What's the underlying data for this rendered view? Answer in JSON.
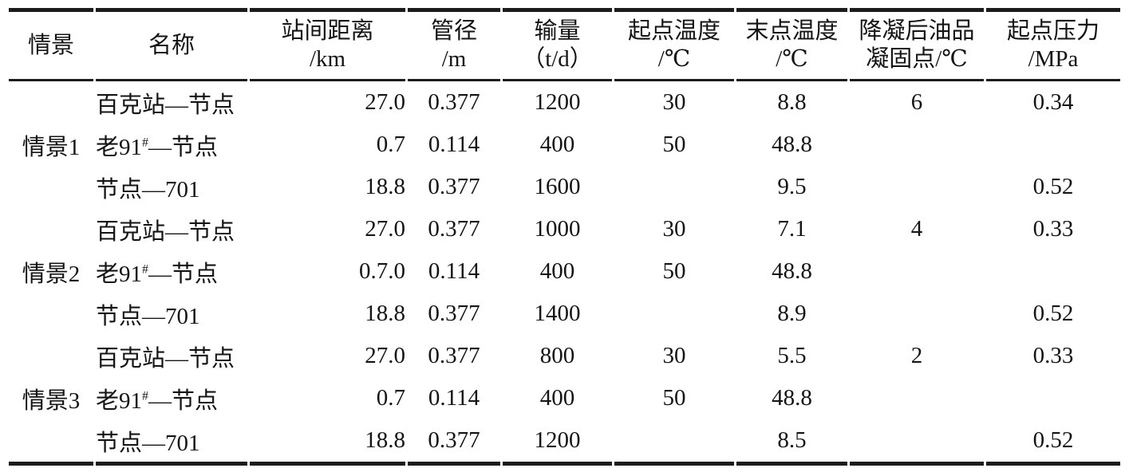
{
  "table": {
    "columns": [
      {
        "id": "scenario",
        "label": "情景",
        "unit": ""
      },
      {
        "id": "name",
        "label": "名称",
        "unit": ""
      },
      {
        "id": "distance",
        "label": "站间距离",
        "unit": "/km"
      },
      {
        "id": "diameter",
        "label": "管径",
        "unit": "/m"
      },
      {
        "id": "throughput",
        "label": "输量",
        "unit": "（t/d）"
      },
      {
        "id": "start_temp",
        "label": "起点温度",
        "unit": "/℃"
      },
      {
        "id": "end_temp",
        "label": "末点温度",
        "unit": "/℃"
      },
      {
        "id": "pour_point",
        "label": "降凝后油品",
        "unit": "凝固点/℃"
      },
      {
        "id": "start_pressure",
        "label": "起点压力",
        "unit": "/MPa"
      }
    ],
    "groups": [
      {
        "scenario": "情景1",
        "rows": [
          {
            "name": "百克站—节点",
            "distance": "27.0",
            "diameter": "0.377",
            "throughput": "1200",
            "start_temp": "30",
            "end_temp": "8.8",
            "pour_point": "6",
            "start_pressure": "0.34"
          },
          {
            "name": "老91#—节点",
            "distance": "0.7",
            "diameter": "0.114",
            "throughput": "400",
            "start_temp": "50",
            "end_temp": "48.8",
            "pour_point": "",
            "start_pressure": ""
          },
          {
            "name": "节点—701",
            "distance": "18.8",
            "diameter": "0.377",
            "throughput": "1600",
            "start_temp": "",
            "end_temp": "9.5",
            "pour_point": "",
            "start_pressure": "0.52"
          }
        ]
      },
      {
        "scenario": "情景2",
        "rows": [
          {
            "name": "百克站—节点",
            "distance": "27.0",
            "diameter": "0.377",
            "throughput": "1000",
            "start_temp": "30",
            "end_temp": "7.1",
            "pour_point": "4",
            "start_pressure": "0.33"
          },
          {
            "name": "老91#—节点",
            "distance": "0.7.0",
            "diameter": "0.114",
            "throughput": "400",
            "start_temp": "50",
            "end_temp": "48.8",
            "pour_point": "",
            "start_pressure": ""
          },
          {
            "name": "节点—701",
            "distance": "18.8",
            "diameter": "0.377",
            "throughput": "1400",
            "start_temp": "",
            "end_temp": "8.9",
            "pour_point": "",
            "start_pressure": "0.52"
          }
        ]
      },
      {
        "scenario": "情景3",
        "rows": [
          {
            "name": "百克站—节点",
            "distance": "27.0",
            "diameter": "0.377",
            "throughput": "800",
            "start_temp": "30",
            "end_temp": "5.5",
            "pour_point": "2",
            "start_pressure": "0.33"
          },
          {
            "name": "老91#—节点",
            "distance": "0.7",
            "diameter": "0.114",
            "throughput": "400",
            "start_temp": "50",
            "end_temp": "48.8",
            "pour_point": "",
            "start_pressure": ""
          },
          {
            "name": "节点—701",
            "distance": "18.8",
            "diameter": "0.377",
            "throughput": "1200",
            "start_temp": "",
            "end_temp": "8.5",
            "pour_point": "",
            "start_pressure": "0.52"
          }
        ]
      }
    ]
  }
}
